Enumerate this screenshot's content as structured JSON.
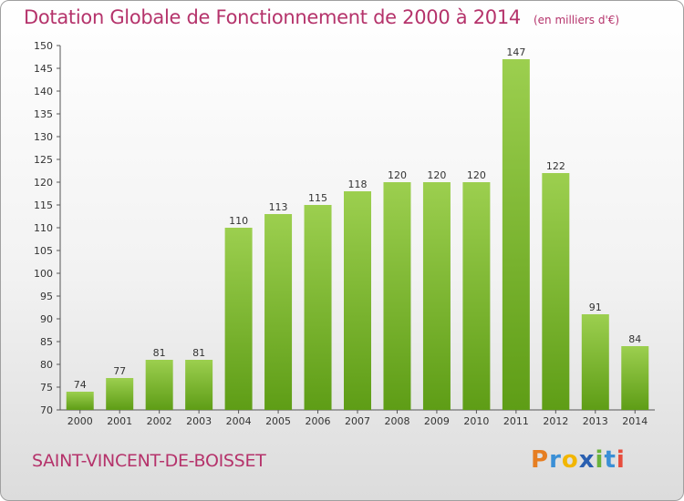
{
  "header": {
    "title": "Dotation Globale de Fonctionnement de 2000 à 2014",
    "unit": "(en milliers d'€)"
  },
  "footer": {
    "commune": "SAINT-VINCENT-DE-BOISSET",
    "logo_text": "Proxiti",
    "logo_colors": [
      "#e67e22",
      "#3a8fd6",
      "#f2b600",
      "#2a5fb0",
      "#6ab23b",
      "#3a8fd6",
      "#e74c3c"
    ]
  },
  "colors": {
    "title": "#b5336b",
    "bar_top": "#9ccf4f",
    "bar_bottom": "#5e9d16"
  },
  "chart_data": {
    "type": "bar",
    "categories": [
      "2000",
      "2001",
      "2002",
      "2003",
      "2004",
      "2005",
      "2006",
      "2007",
      "2008",
      "2009",
      "2010",
      "2011",
      "2012",
      "2013",
      "2014"
    ],
    "values": [
      74,
      77,
      81,
      81,
      110,
      113,
      115,
      118,
      120,
      120,
      120,
      147,
      122,
      91,
      84
    ],
    "title": "Dotation Globale de Fonctionnement de 2000 à 2014",
    "ylim": [
      70,
      150
    ],
    "yticks": [
      70,
      75,
      80,
      85,
      90,
      95,
      100,
      105,
      110,
      115,
      120,
      125,
      130,
      135,
      140,
      145,
      150
    ],
    "grid": false,
    "legend": "none"
  }
}
